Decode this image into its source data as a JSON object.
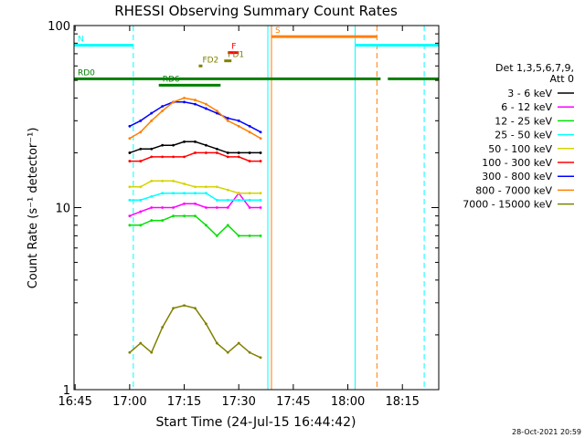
{
  "chart_data": {
    "type": "line",
    "title": "RHESSI Observing Summary Count Rates",
    "xlabel": "Start Time (24-Jul-15 16:44:42)",
    "ylabel": "Count Rate (s⁻¹ detector⁻¹)",
    "yscale": "log",
    "xlim": [
      "16:44:42",
      "18:25:00"
    ],
    "ylim": [
      1,
      100
    ],
    "x_ticks": [
      "16:45",
      "17:00",
      "17:15",
      "17:30",
      "17:45",
      "18:00",
      "18:15"
    ],
    "y_ticks": [
      "1",
      "10",
      "100"
    ],
    "legend_title": [
      "Det 1,3,5,6,7,9,",
      "Att 0"
    ],
    "legend_position": "right",
    "footer": "28-Oct-2021 20:59",
    "series": [
      {
        "name": "3 - 6 keV",
        "color": "#000000",
        "points": [
          [
            "17:00",
            20
          ],
          [
            "17:03",
            21
          ],
          [
            "17:06",
            21
          ],
          [
            "17:09",
            22
          ],
          [
            "17:12",
            22
          ],
          [
            "17:15",
            23
          ],
          [
            "17:18",
            23
          ],
          [
            "17:21",
            22
          ],
          [
            "17:24",
            21
          ],
          [
            "17:27",
            20
          ],
          [
            "17:30",
            20
          ],
          [
            "17:33",
            20
          ],
          [
            "17:36",
            20
          ]
        ]
      },
      {
        "name": "6 - 12 keV",
        "color": "#ff00ff",
        "points": [
          [
            "17:00",
            9
          ],
          [
            "17:03",
            9.5
          ],
          [
            "17:06",
            10
          ],
          [
            "17:09",
            10
          ],
          [
            "17:12",
            10
          ],
          [
            "17:15",
            10.5
          ],
          [
            "17:18",
            10.5
          ],
          [
            "17:21",
            10
          ],
          [
            "17:24",
            10
          ],
          [
            "17:27",
            10
          ],
          [
            "17:30",
            12
          ],
          [
            "17:33",
            10
          ],
          [
            "17:36",
            10
          ]
        ]
      },
      {
        "name": "12 - 25 keV",
        "color": "#00e000",
        "points": [
          [
            "17:00",
            8
          ],
          [
            "17:03",
            8
          ],
          [
            "17:06",
            8.5
          ],
          [
            "17:09",
            8.5
          ],
          [
            "17:12",
            9
          ],
          [
            "17:15",
            9
          ],
          [
            "17:18",
            9
          ],
          [
            "17:21",
            8
          ],
          [
            "17:24",
            7
          ],
          [
            "17:27",
            8
          ],
          [
            "17:30",
            7
          ],
          [
            "17:33",
            7
          ],
          [
            "17:36",
            7
          ]
        ]
      },
      {
        "name": "25 - 50 keV",
        "color": "#00ffff",
        "points": [
          [
            "17:00",
            11
          ],
          [
            "17:03",
            11
          ],
          [
            "17:06",
            11.5
          ],
          [
            "17:09",
            12
          ],
          [
            "17:12",
            12
          ],
          [
            "17:15",
            12
          ],
          [
            "17:18",
            12
          ],
          [
            "17:21",
            12
          ],
          [
            "17:24",
            11
          ],
          [
            "17:27",
            11
          ],
          [
            "17:30",
            11
          ],
          [
            "17:33",
            11
          ],
          [
            "17:36",
            11
          ]
        ]
      },
      {
        "name": "50 - 100 keV",
        "color": "#d4d400",
        "points": [
          [
            "17:00",
            13
          ],
          [
            "17:03",
            13
          ],
          [
            "17:06",
            14
          ],
          [
            "17:09",
            14
          ],
          [
            "17:12",
            14
          ],
          [
            "17:15",
            13.5
          ],
          [
            "17:18",
            13
          ],
          [
            "17:21",
            13
          ],
          [
            "17:24",
            13
          ],
          [
            "17:27",
            12.5
          ],
          [
            "17:30",
            12
          ],
          [
            "17:33",
            12
          ],
          [
            "17:36",
            12
          ]
        ]
      },
      {
        "name": "100 - 300 keV",
        "color": "#ff0000",
        "points": [
          [
            "17:00",
            18
          ],
          [
            "17:03",
            18
          ],
          [
            "17:06",
            19
          ],
          [
            "17:09",
            19
          ],
          [
            "17:12",
            19
          ],
          [
            "17:15",
            19
          ],
          [
            "17:18",
            20
          ],
          [
            "17:21",
            20
          ],
          [
            "17:24",
            20
          ],
          [
            "17:27",
            19
          ],
          [
            "17:30",
            19
          ],
          [
            "17:33",
            18
          ],
          [
            "17:36",
            18
          ]
        ]
      },
      {
        "name": "300 - 800 keV",
        "color": "#0000ff",
        "points": [
          [
            "17:00",
            28
          ],
          [
            "17:03",
            30
          ],
          [
            "17:06",
            33
          ],
          [
            "17:09",
            36
          ],
          [
            "17:12",
            38
          ],
          [
            "17:15",
            38
          ],
          [
            "17:18",
            37
          ],
          [
            "17:21",
            35
          ],
          [
            "17:24",
            33
          ],
          [
            "17:27",
            31
          ],
          [
            "17:30",
            30
          ],
          [
            "17:33",
            28
          ],
          [
            "17:36",
            26
          ]
        ]
      },
      {
        "name": "800 - 7000 keV",
        "color": "#ff8000",
        "points": [
          [
            "17:00",
            24
          ],
          [
            "17:03",
            26
          ],
          [
            "17:06",
            30
          ],
          [
            "17:09",
            34
          ],
          [
            "17:12",
            38
          ],
          [
            "17:15",
            40
          ],
          [
            "17:18",
            39
          ],
          [
            "17:21",
            37
          ],
          [
            "17:24",
            34
          ],
          [
            "17:27",
            30
          ],
          [
            "17:30",
            28
          ],
          [
            "17:33",
            26
          ],
          [
            "17:36",
            24
          ]
        ]
      },
      {
        "name": "7000 - 15000 keV",
        "color": "#808000",
        "points": [
          [
            "17:00",
            1.6
          ],
          [
            "17:03",
            1.8
          ],
          [
            "17:06",
            1.6
          ],
          [
            "17:09",
            2.2
          ],
          [
            "17:12",
            2.8
          ],
          [
            "17:15",
            2.9
          ],
          [
            "17:18",
            2.8
          ],
          [
            "17:21",
            2.3
          ],
          [
            "17:24",
            1.8
          ],
          [
            "17:27",
            1.6
          ],
          [
            "17:30",
            1.8
          ],
          [
            "17:33",
            1.6
          ],
          [
            "17:36",
            1.5
          ]
        ]
      }
    ],
    "flag_bars": [
      {
        "label": "N",
        "color": "#00ffff",
        "y": 78,
        "segments": [
          [
            "16:44:42",
            "17:01"
          ],
          [
            "18:02",
            "18:25"
          ]
        ]
      },
      {
        "label": "S",
        "color": "#ff8000",
        "y": 87,
        "segments": [
          [
            "17:39",
            "18:08"
          ]
        ]
      },
      {
        "label": "F",
        "color": "#ff0000",
        "y": 71,
        "segments": [
          [
            "17:27",
            "17:30"
          ]
        ]
      },
      {
        "label": "FD1",
        "color": "#808000",
        "y": 64,
        "segments": [
          [
            "17:26",
            "17:28"
          ]
        ]
      },
      {
        "label": "FD2",
        "color": "#808000",
        "y": 60,
        "segments": [
          [
            "17:19",
            "17:20"
          ]
        ]
      },
      {
        "label": "RD0",
        "color": "#008000",
        "y": 51,
        "segments": [
          [
            "16:44:42",
            "18:09"
          ],
          [
            "18:11",
            "18:25"
          ]
        ]
      },
      {
        "label": "RD6",
        "color": "#008000",
        "y": 47,
        "segments": [
          [
            "17:08",
            "17:25"
          ]
        ]
      }
    ],
    "vertical_markers": [
      {
        "time": "16:44:42",
        "color": "#00ffff",
        "style": "solid"
      },
      {
        "time": "17:01",
        "color": "#00ffff",
        "style": "dashed"
      },
      {
        "time": "17:38",
        "color": "#00ffff",
        "style": "solid"
      },
      {
        "time": "17:39",
        "color": "#ff8000",
        "style": "solid"
      },
      {
        "time": "18:02",
        "color": "#00ffff",
        "style": "solid"
      },
      {
        "time": "18:08",
        "color": "#ff8000",
        "style": "dashed"
      },
      {
        "time": "18:21",
        "color": "#00ffff",
        "style": "dashed"
      }
    ]
  }
}
